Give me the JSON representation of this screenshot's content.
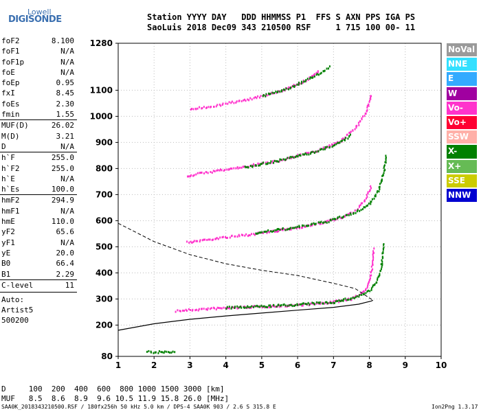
{
  "logo": {
    "line1": "Lowell",
    "line2": "DIGISONDE"
  },
  "header": {
    "line1": "Station YYYY DAY   DDD HHMMSS P1  FFS S AXN PPS IGA PS",
    "line2": "SaoLuis 2018 Dec09 343 210500 RSF     1 715 100 00- 11"
  },
  "params_group1": [
    {
      "k": "foF2",
      "v": "8.100"
    },
    {
      "k": "foF1",
      "v": "N/A"
    },
    {
      "k": "foF1p",
      "v": "N/A"
    },
    {
      "k": "foE",
      "v": "N/A"
    },
    {
      "k": "foEp",
      "v": "0.95"
    },
    {
      "k": "fxI",
      "v": "8.45"
    },
    {
      "k": "foEs",
      "v": "2.30"
    },
    {
      "k": "fmin",
      "v": "1.55"
    }
  ],
  "params_group2": [
    {
      "k": "MUF(D)",
      "v": "26.02"
    },
    {
      "k": "M(D)",
      "v": "3.21"
    },
    {
      "k": "D",
      "v": "N/A"
    }
  ],
  "params_group3": [
    {
      "k": "h`F",
      "v": "255.0"
    },
    {
      "k": "h`F2",
      "v": "255.0"
    },
    {
      "k": "h`E",
      "v": "N/A"
    },
    {
      "k": "h`Es",
      "v": "100.0"
    }
  ],
  "params_group4": [
    {
      "k": "hmF2",
      "v": "294.9"
    },
    {
      "k": "hmF1",
      "v": "N/A"
    },
    {
      "k": "hmE",
      "v": "110.0"
    },
    {
      "k": "yF2",
      "v": "65.6"
    },
    {
      "k": "yF1",
      "v": "N/A"
    },
    {
      "k": "yE",
      "v": "20.0"
    },
    {
      "k": "B0",
      "v": "66.4"
    },
    {
      "k": "B1",
      "v": "2.29"
    }
  ],
  "params_group5": [
    {
      "k": "C-level",
      "v": "11"
    }
  ],
  "auto": [
    "Auto:",
    "Artist5",
    "500200"
  ],
  "legend": [
    {
      "label": "NoVal",
      "color": "#9a9a9a"
    },
    {
      "label": "NNE",
      "color": "#33e0ff"
    },
    {
      "label": "E",
      "color": "#33aaff"
    },
    {
      "label": "W",
      "color": "#a000a0"
    },
    {
      "label": "Vo-",
      "color": "#ff33cc"
    },
    {
      "label": "Vo+",
      "color": "#ff0033"
    },
    {
      "label": "SSW",
      "color": "#ffb0a8"
    },
    {
      "label": "X-",
      "color": "#008000"
    },
    {
      "label": "X+",
      "color": "#66bb55"
    },
    {
      "label": "SSE",
      "color": "#cccc00"
    },
    {
      "label": "NNW",
      "color": "#0000d0"
    }
  ],
  "bottom": {
    "d_line": "D     100  200  400  600  800 1000 1500 3000 [km]",
    "muf_line": "MUF   8.5  8.6  8.9  9.6 10.5 11.9 15.8 26.0 [MHz]",
    "footer": "SAA0K_2018343210500.RSF / 180fx256h 50 kHz 5.0 km / DPS-4 SAA0K 903 / 2.6 S 315.8 E",
    "version": "Ion2Png 1.3.17"
  },
  "chart_data": {
    "type": "scatter",
    "xlim": [
      1,
      10
    ],
    "ylim": [
      80,
      1280
    ],
    "x_ticks": [
      1,
      2,
      3,
      4,
      5,
      6,
      7,
      8,
      9,
      10
    ],
    "y_ticks": [
      80,
      200,
      300,
      400,
      500,
      600,
      700,
      800,
      900,
      1000,
      1100,
      1280
    ],
    "grid": true,
    "traces": [
      {
        "name": "O-trace 1",
        "color": "#ff33cc",
        "points": [
          [
            2.6,
            258
          ],
          [
            3.5,
            266
          ],
          [
            4.5,
            272
          ],
          [
            5.5,
            277
          ],
          [
            6.5,
            285
          ],
          [
            7.0,
            292
          ],
          [
            7.5,
            305
          ],
          [
            7.8,
            325
          ],
          [
            7.95,
            360
          ],
          [
            8.05,
            420
          ],
          [
            8.1,
            500
          ]
        ]
      },
      {
        "name": "X-trace 1",
        "color": "#008000",
        "points": [
          [
            4.0,
            270
          ],
          [
            5.0,
            275
          ],
          [
            6.0,
            282
          ],
          [
            7.0,
            292
          ],
          [
            7.6,
            310
          ],
          [
            8.0,
            335
          ],
          [
            8.2,
            370
          ],
          [
            8.32,
            430
          ],
          [
            8.38,
            520
          ]
        ]
      },
      {
        "name": "O-trace 2",
        "color": "#ff33cc",
        "points": [
          [
            2.9,
            520
          ],
          [
            3.5,
            532
          ],
          [
            4.5,
            548
          ],
          [
            5.5,
            566
          ],
          [
            6.5,
            590
          ],
          [
            7.2,
            615
          ],
          [
            7.6,
            640
          ],
          [
            7.85,
            680
          ],
          [
            8.05,
            740
          ]
        ]
      },
      {
        "name": "X-trace 2",
        "color": "#008000",
        "points": [
          [
            4.8,
            556
          ],
          [
            5.8,
            575
          ],
          [
            6.8,
            600
          ],
          [
            7.6,
            635
          ],
          [
            8.0,
            670
          ],
          [
            8.25,
            720
          ],
          [
            8.4,
            800
          ],
          [
            8.45,
            860
          ]
        ]
      },
      {
        "name": "O-trace 3",
        "color": "#ff33cc",
        "points": [
          [
            2.9,
            775
          ],
          [
            3.5,
            790
          ],
          [
            4.5,
            810
          ],
          [
            5.5,
            835
          ],
          [
            6.5,
            870
          ],
          [
            7.2,
            910
          ],
          [
            7.6,
            960
          ],
          [
            7.9,
            1020
          ],
          [
            8.05,
            1090
          ]
        ]
      },
      {
        "name": "X-trace 3",
        "color": "#008000",
        "points": [
          [
            4.5,
            808
          ],
          [
            5.5,
            835
          ],
          [
            6.5,
            868
          ],
          [
            7.2,
            905
          ],
          [
            7.5,
            935
          ]
        ]
      },
      {
        "name": "O-trace 4",
        "color": "#ff33cc",
        "points": [
          [
            3.0,
            1030
          ],
          [
            3.5,
            1040
          ],
          [
            4.5,
            1065
          ],
          [
            5.5,
            1100
          ],
          [
            6.2,
            1140
          ],
          [
            6.6,
            1180
          ]
        ]
      },
      {
        "name": "X-trace 4",
        "color": "#008000",
        "points": [
          [
            5.0,
            1080
          ],
          [
            5.8,
            1115
          ],
          [
            6.5,
            1160
          ],
          [
            6.9,
            1195
          ]
        ]
      },
      {
        "name": "E-layer",
        "color": "#008000",
        "points": [
          [
            1.8,
            100
          ],
          [
            2.0,
            100
          ],
          [
            2.3,
            100
          ],
          [
            2.6,
            101
          ]
        ]
      }
    ],
    "profile": {
      "points": [
        [
          1.0,
          180
        ],
        [
          2.0,
          205
        ],
        [
          3.0,
          222
        ],
        [
          4.0,
          235
        ],
        [
          5.0,
          246
        ],
        [
          6.0,
          257
        ],
        [
          7.0,
          268
        ],
        [
          7.7,
          280
        ],
        [
          8.05,
          292
        ],
        [
          8.1,
          295
        ]
      ]
    },
    "dashed": {
      "points": [
        [
          1.0,
          590
        ],
        [
          2.0,
          520
        ],
        [
          3.0,
          470
        ],
        [
          4.0,
          435
        ],
        [
          5.0,
          410
        ],
        [
          6.0,
          390
        ],
        [
          7.0,
          360
        ],
        [
          7.6,
          340
        ],
        [
          8.1,
          295
        ]
      ]
    }
  }
}
